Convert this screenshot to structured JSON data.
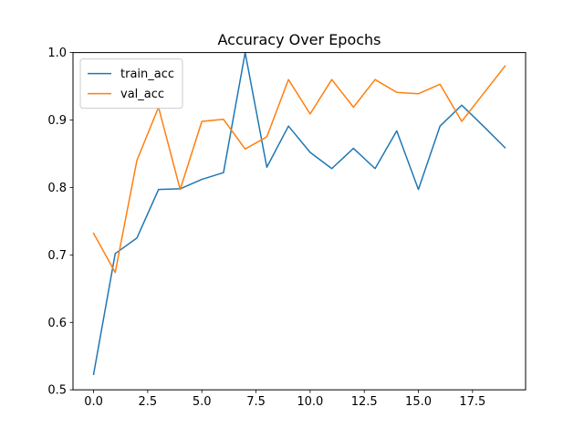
{
  "chart_data": {
    "type": "line",
    "title": "Accuracy Over Epochs",
    "xlabel": "",
    "ylabel": "",
    "xlim": [
      -0.95,
      19.95
    ],
    "ylim": [
      0.5,
      1.0
    ],
    "xticks": [
      0.0,
      2.5,
      5.0,
      7.5,
      10.0,
      12.5,
      15.0,
      17.5
    ],
    "xtick_labels": [
      "0.0",
      "2.5",
      "5.0",
      "7.5",
      "10.0",
      "12.5",
      "15.0",
      "17.5"
    ],
    "yticks": [
      0.5,
      0.6,
      0.7,
      0.8,
      0.9,
      1.0
    ],
    "ytick_labels": [
      "0.5",
      "0.6",
      "0.7",
      "0.8",
      "0.9",
      "1.0"
    ],
    "grid": false,
    "legend_position": "top-left",
    "x": [
      0,
      1,
      2,
      3,
      4,
      5,
      6,
      7,
      8,
      9,
      10,
      11,
      12,
      13,
      14,
      15,
      16,
      17,
      18,
      19
    ],
    "series": [
      {
        "name": "train_acc",
        "color": "#1f77b4",
        "values": [
          0.523,
          0.702,
          0.725,
          0.797,
          0.798,
          0.812,
          0.822,
          1.0,
          0.83,
          0.891,
          0.852,
          0.828,
          0.858,
          0.828,
          0.884,
          0.797,
          0.891,
          0.922,
          0.891,
          0.859
        ]
      },
      {
        "name": "val_acc",
        "color": "#ff7f0e",
        "values": [
          0.732,
          0.674,
          0.84,
          0.919,
          0.797,
          0.898,
          0.901,
          0.857,
          0.875,
          0.96,
          0.909,
          0.96,
          0.919,
          0.96,
          0.941,
          0.939,
          0.953,
          0.898,
          0.939,
          0.98
        ]
      }
    ]
  }
}
